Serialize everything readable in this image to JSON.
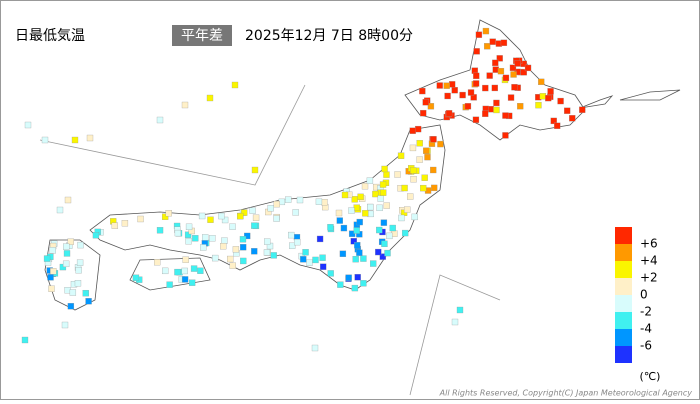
{
  "title": "日最低気温",
  "mode": "平年差",
  "datetime": "2025年12月 7日 8時00分",
  "legend": {
    "labels": [
      "+6",
      "+4",
      "+2",
      "0",
      "-2",
      "-4",
      "-6"
    ],
    "colors": [
      "#ff2800",
      "#ff9900",
      "#faf500",
      "#fff0c8",
      "#d8fcfc",
      "#40f0f0",
      "#0096ff",
      "#1e32ff"
    ],
    "unit": "(℃)"
  },
  "copyright": "All Rights Reserved, Copyright(C) Japan Meteorological Agency"
}
